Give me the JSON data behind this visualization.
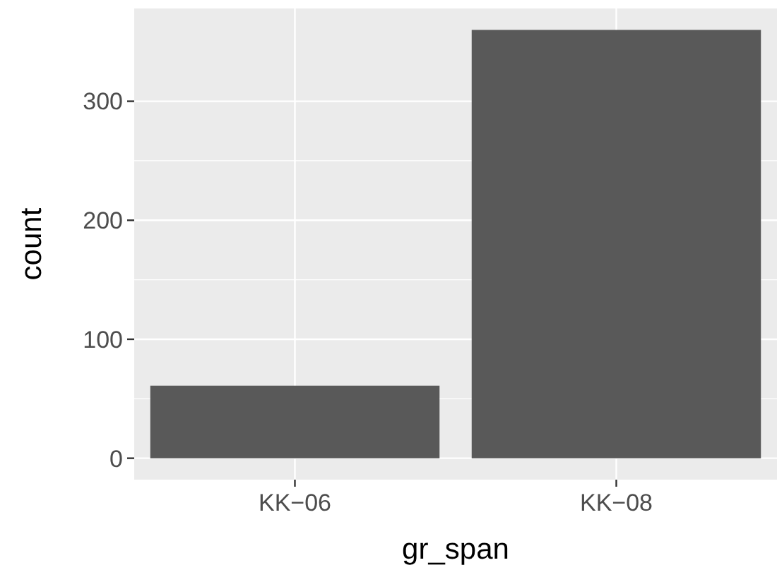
{
  "chart_data": {
    "type": "bar",
    "xlabel": "gr_span",
    "ylabel": "count",
    "categories": [
      "KK−06",
      "KK−08"
    ],
    "values": [
      61,
      360
    ],
    "color": "#595959",
    "ylim": [
      -18,
      378
    ],
    "yticks": [
      0,
      100,
      200,
      300
    ],
    "grid": true
  }
}
